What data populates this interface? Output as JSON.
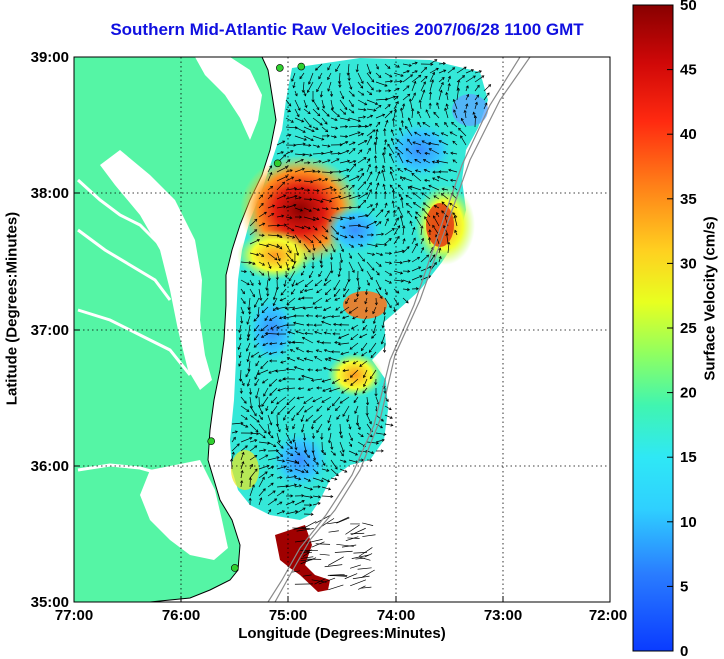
{
  "title": "Southern Mid-Atlantic Raw Velocities 2007/06/28 1100 GMT",
  "xlabel": "Longitude (Degrees:Minutes)",
  "ylabel": "Latitude (Degrees:Minutes)",
  "colorbar_label": "Surface Velocity (cm/s)",
  "x_ticks": [
    "77:00",
    "76:00",
    "75:00",
    "74:00",
    "73:00",
    "72:00"
  ],
  "y_ticks": [
    "39:00",
    "38:00",
    "37:00",
    "36:00",
    "35:00"
  ],
  "colorbar_ticks": [
    "0",
    "5",
    "10",
    "15",
    "20",
    "25",
    "30",
    "35",
    "40",
    "45",
    "50"
  ],
  "colors": {
    "land": "#55f5a5",
    "title": "#1010e0",
    "colormap": [
      "#0a3bff",
      "#3a9cff",
      "#2fe8ff",
      "#35f5c0",
      "#a0ff50",
      "#f0ff20",
      "#ffb020",
      "#ff5010",
      "#e01010",
      "#900000"
    ]
  },
  "map": {
    "lon_range": [
      -77,
      -72
    ],
    "lat_range": [
      35,
      39
    ],
    "velocity_range": [
      0,
      50
    ],
    "grid": true,
    "stations": [
      {
        "lon": -74.88,
        "lat": 38.93
      },
      {
        "lon": -75.08,
        "lat": 38.92
      },
      {
        "lon": -75.1,
        "lat": 38.22
      },
      {
        "lon": -75.72,
        "lat": 36.18
      },
      {
        "lon": -75.5,
        "lat": 35.25
      }
    ]
  }
}
